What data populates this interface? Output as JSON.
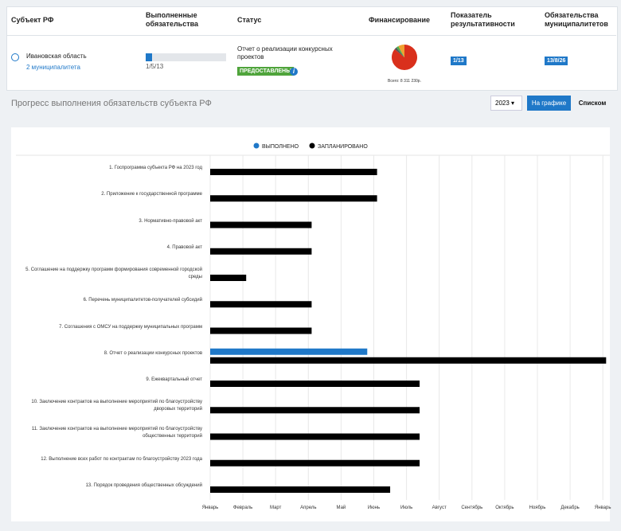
{
  "table": {
    "headers": [
      "Субъект РФ",
      "Выполненные обязательства",
      "Статус",
      "Финансирование",
      "Показатель результативности",
      "Обязательства муниципалитетов"
    ],
    "row": {
      "region": "Ивановская область",
      "municipalities": "2 муниципалитета",
      "progress": "1/5/13",
      "status_text": "Отчет о реализации конкурсных проектов",
      "status_badge": "ПРЕДОСТАВЛЕНЫ",
      "financing": {
        "type": "pie",
        "caption": "Всего: 8 311 230р.",
        "slices": [
          {
            "value": 86,
            "color": "#d9301c"
          },
          {
            "value": 3,
            "color": "#555555"
          },
          {
            "value": 3,
            "color": "#4caf50"
          },
          {
            "value": 8,
            "color": "#f0a030"
          }
        ]
      },
      "indicator": "1/13",
      "obligations": "13/8/26"
    }
  },
  "section": {
    "title": "Прогресс выполнения обязательств субъекта РФ",
    "year": "2023",
    "buttons": [
      "На графике",
      "Списком"
    ]
  },
  "chart_data": {
    "type": "bar",
    "orientation": "horizontal",
    "categories": [
      "1. Госпрограмма субъекта РФ на 2023 год",
      "2. Приложение к государственной программе",
      "3. Нормативно-правовой акт",
      "4. Правовой акт",
      "5. Соглашение на поддержку программ формирования современной городской среды",
      "6. Перечень муниципалитетов-получателей субсидий",
      "7. Соглашения с ОМСУ на поддержку муниципальных программ",
      "8. Отчет о реализации конкурсных проектов",
      "9. Ежеквартальный отчет",
      "10. Заключение контрактов на выполнение мероприятий по благоустройству дворовых территорий",
      "11. Заключение контрактов на выполнение мероприятий по благоустройству общественных территорий",
      "12. Выполнение всех работ по контрактам по благоустройству 2023 года",
      "13. Порядок проведения общественных обсуждений"
    ],
    "series": [
      {
        "name": "ВЫПОЛНЕНО",
        "color": "#1f78c8",
        "values": [
          null,
          null,
          null,
          null,
          null,
          null,
          null,
          4.8,
          null,
          null,
          null,
          null,
          null
        ]
      },
      {
        "name": "ЗАПЛАНИРОВАНО",
        "color": "#000000",
        "values": [
          5.1,
          5.1,
          3.1,
          3.1,
          1.1,
          3.1,
          3.1,
          12.1,
          6.4,
          6.4,
          6.4,
          6.4,
          5.5
        ]
      }
    ],
    "xlim": [
      0,
      12.2
    ],
    "xticks": [
      {
        "value": 0,
        "label": "Январь"
      },
      {
        "value": 1,
        "label": "Февраль"
      },
      {
        "value": 2,
        "label": "Март"
      },
      {
        "value": 3,
        "label": "Апрель"
      },
      {
        "value": 4,
        "label": "Май"
      },
      {
        "value": 5,
        "label": "Июнь"
      },
      {
        "value": 6,
        "label": "Июль"
      },
      {
        "value": 7,
        "label": "Август"
      },
      {
        "value": 8,
        "label": "Сентябрь"
      },
      {
        "value": 9,
        "label": "Октябрь"
      },
      {
        "value": 10,
        "label": "Ноябрь"
      },
      {
        "value": 11,
        "label": "Декабрь"
      },
      {
        "value": 12,
        "label": "Январь"
      }
    ],
    "grid": true,
    "legend": "top"
  }
}
